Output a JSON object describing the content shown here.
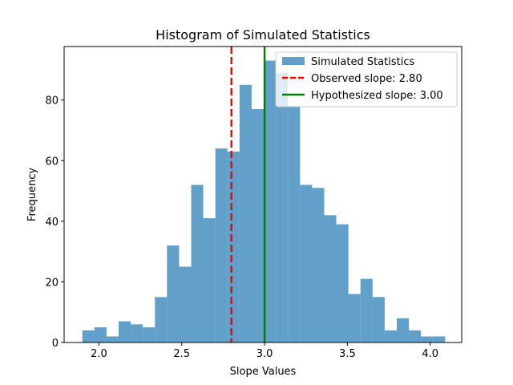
{
  "chart_data": {
    "type": "bar",
    "title": "Histogram of Simulated Statistics",
    "xlabel": "Slope Values",
    "ylabel": "Frequency",
    "xlim": [
      1.79,
      4.19
    ],
    "ylim": [
      0,
      97.65
    ],
    "xticks": [
      2.0,
      2.5,
      3.0,
      3.5,
      4.0
    ],
    "xtick_labels": [
      "2.0",
      "2.5",
      "3.0",
      "3.5",
      "4.0"
    ],
    "yticks": [
      0,
      20,
      40,
      60,
      80
    ],
    "ytick_labels": [
      "0",
      "20",
      "40",
      "60",
      "80"
    ],
    "grid": false,
    "legend_position": "top-right",
    "bins": {
      "start": 1.9,
      "end": 4.09,
      "counts": [
        4,
        5,
        2,
        7,
        6,
        5,
        15,
        32,
        25,
        52,
        41,
        64,
        63,
        85,
        77,
        93,
        89,
        78,
        52,
        51,
        42,
        39,
        16,
        21,
        15,
        4,
        8,
        4,
        2,
        2
      ]
    },
    "series": [
      {
        "name": "Simulated Statistics",
        "kind": "histogram",
        "color": "#1f77b4",
        "alpha": 0.7
      },
      {
        "name": "Observed slope: 2.80",
        "kind": "vline",
        "x": 2.8,
        "color": "#ff0000",
        "style": "dashed"
      },
      {
        "name": "Hypothesized slope: 3.00",
        "kind": "vline",
        "x": 3.0,
        "color": "#008000",
        "style": "solid"
      }
    ]
  }
}
